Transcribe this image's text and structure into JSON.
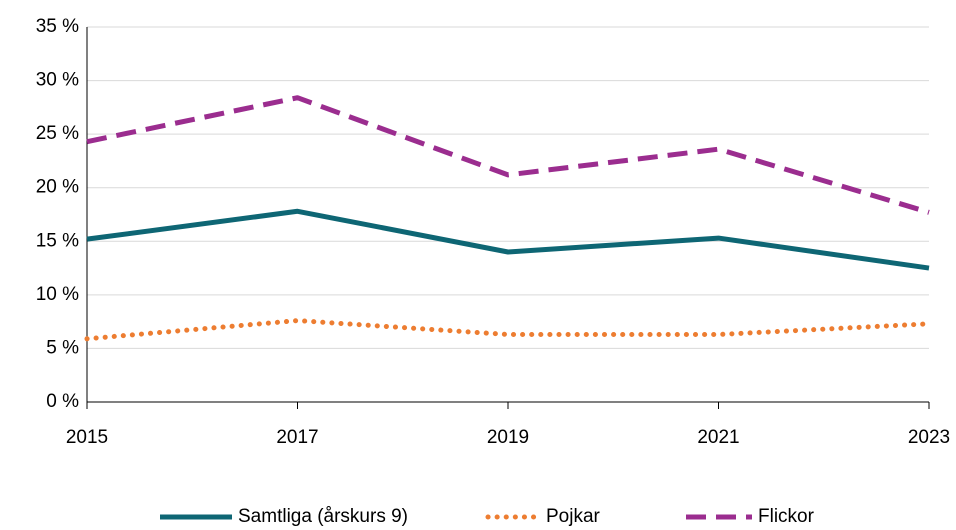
{
  "chart_data": {
    "type": "line",
    "x": [
      2015,
      2017,
      2019,
      2021,
      2023
    ],
    "xlim": [
      2015,
      2023
    ],
    "xticks": [
      2015,
      2017,
      2019,
      2021,
      2023
    ],
    "ylim": [
      0,
      35
    ],
    "yticks": [
      {
        "value": 0,
        "label": "0 %"
      },
      {
        "value": 5,
        "label": "5 %"
      },
      {
        "value": 10,
        "label": "10 %"
      },
      {
        "value": 15,
        "label": "15 %"
      },
      {
        "value": 20,
        "label": "20 %"
      },
      {
        "value": 25,
        "label": "25 %"
      },
      {
        "value": 30,
        "label": "30 %"
      },
      {
        "value": 35,
        "label": "35 %"
      }
    ],
    "grid": true,
    "legend": "bottom",
    "series": [
      {
        "name": "Samtliga (årskurs 9)",
        "color": "#0e6674",
        "dash": "solid",
        "values": [
          15.2,
          17.8,
          14.0,
          15.3,
          12.5
        ]
      },
      {
        "name": "Pojkar",
        "color": "#ed7d31",
        "dash": "dotted",
        "values": [
          5.9,
          7.6,
          6.3,
          6.3,
          7.3
        ]
      },
      {
        "name": "Flickor",
        "color": "#9b2d8f",
        "dash": "dashed",
        "values": [
          24.3,
          28.4,
          21.2,
          23.6,
          17.7
        ]
      }
    ]
  }
}
